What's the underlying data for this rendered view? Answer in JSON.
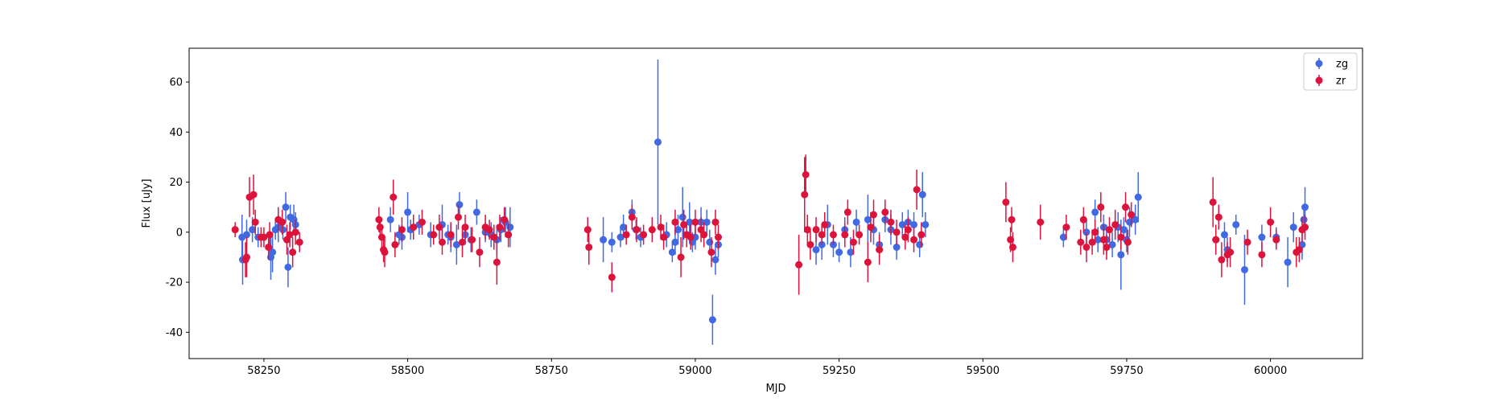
{
  "chart_data": {
    "type": "scatter",
    "title": "",
    "xlabel": "MJD",
    "ylabel": "Flux [uJy]",
    "xlim": [
      58120,
      60160
    ],
    "ylim": [
      -50.5,
      73.5
    ],
    "xticks": [
      58250,
      58500,
      58750,
      59000,
      59250,
      59500,
      59750,
      60000
    ],
    "yticks": [
      -40,
      -20,
      0,
      20,
      40,
      60
    ],
    "grid": false,
    "legend_position": "top-right",
    "error_bars": true,
    "series": [
      {
        "name": "zg",
        "color": "#4169e1",
        "points": [
          [
            58212,
            -2,
            9
          ],
          [
            58213,
            -11,
            10
          ],
          [
            58220,
            -1,
            6
          ],
          [
            58230,
            1,
            5
          ],
          [
            58240,
            -2,
            4
          ],
          [
            58262,
            -10,
            9
          ],
          [
            58265,
            -8,
            8
          ],
          [
            58270,
            1,
            4
          ],
          [
            58275,
            2,
            6
          ],
          [
            58283,
            1,
            4
          ],
          [
            58288,
            10,
            6
          ],
          [
            58292,
            -14,
            8
          ],
          [
            58296,
            6,
            5
          ],
          [
            58302,
            5,
            6
          ],
          [
            58305,
            3,
            5
          ],
          [
            58470,
            5,
            5
          ],
          [
            58485,
            -1,
            4
          ],
          [
            58490,
            -2,
            5
          ],
          [
            58500,
            8,
            8
          ],
          [
            58505,
            1,
            4
          ],
          [
            58520,
            3,
            4
          ],
          [
            58540,
            -1,
            5
          ],
          [
            58560,
            3,
            8
          ],
          [
            58570,
            -1,
            4
          ],
          [
            58575,
            -2,
            6
          ],
          [
            58585,
            -5,
            8
          ],
          [
            58590,
            11,
            5
          ],
          [
            58600,
            -1,
            4
          ],
          [
            58610,
            -3,
            5
          ],
          [
            58620,
            8,
            5
          ],
          [
            58635,
            0,
            4
          ],
          [
            58645,
            -1,
            5
          ],
          [
            58655,
            -3,
            6
          ],
          [
            58662,
            1,
            5
          ],
          [
            58670,
            4,
            6
          ],
          [
            58678,
            2,
            8
          ],
          [
            58840,
            -3,
            9
          ],
          [
            58855,
            -4,
            4
          ],
          [
            58870,
            -2,
            4
          ],
          [
            58875,
            2,
            5
          ],
          [
            58890,
            8,
            5
          ],
          [
            58897,
            1,
            4
          ],
          [
            58905,
            -2,
            4
          ],
          [
            58935,
            36,
            33
          ],
          [
            58950,
            -1,
            5
          ],
          [
            58960,
            -8,
            4
          ],
          [
            58965,
            -4,
            5
          ],
          [
            58970,
            1,
            6
          ],
          [
            58978,
            6,
            12
          ],
          [
            58990,
            4,
            8
          ],
          [
            58995,
            -4,
            4
          ],
          [
            59000,
            -2,
            5
          ],
          [
            59010,
            4,
            6
          ],
          [
            59020,
            4,
            5
          ],
          [
            59025,
            -4,
            5
          ],
          [
            59030,
            -35,
            10
          ],
          [
            59035,
            -11,
            6
          ],
          [
            59040,
            -5,
            5
          ],
          [
            59210,
            -7,
            6
          ],
          [
            59220,
            -5,
            6
          ],
          [
            59230,
            3,
            8
          ],
          [
            59240,
            -5,
            5
          ],
          [
            59250,
            -8,
            4
          ],
          [
            59260,
            1,
            5
          ],
          [
            59270,
            -8,
            6
          ],
          [
            59280,
            4,
            5
          ],
          [
            59300,
            5,
            10
          ],
          [
            59310,
            1,
            6
          ],
          [
            59320,
            -5,
            5
          ],
          [
            59330,
            5,
            5
          ],
          [
            59340,
            1,
            6
          ],
          [
            59350,
            -6,
            5
          ],
          [
            59360,
            3,
            5
          ],
          [
            59370,
            4,
            5
          ],
          [
            59380,
            3,
            5
          ],
          [
            59390,
            -5,
            5
          ],
          [
            59395,
            15,
            9
          ],
          [
            59400,
            3,
            5
          ],
          [
            59640,
            -2,
            4
          ],
          [
            59680,
            0,
            5
          ],
          [
            59695,
            8,
            5
          ],
          [
            59700,
            -3,
            5
          ],
          [
            59710,
            2,
            5
          ],
          [
            59715,
            -3,
            6
          ],
          [
            59725,
            -5,
            5
          ],
          [
            59735,
            2,
            6
          ],
          [
            59740,
            -9,
            14
          ],
          [
            59745,
            1,
            5
          ],
          [
            59750,
            -3,
            5
          ],
          [
            59755,
            4,
            6
          ],
          [
            59765,
            5,
            6
          ],
          [
            59770,
            14,
            10
          ],
          [
            59905,
            -3,
            6
          ],
          [
            59920,
            -1,
            5
          ],
          [
            59925,
            -7,
            5
          ],
          [
            59940,
            3,
            4
          ],
          [
            59955,
            -15,
            14
          ],
          [
            59985,
            -2,
            5
          ],
          [
            60010,
            -2,
            4
          ],
          [
            60030,
            -12,
            10
          ],
          [
            60040,
            2,
            6
          ],
          [
            60055,
            -5,
            6
          ],
          [
            60058,
            5,
            5
          ],
          [
            60060,
            10,
            8
          ]
        ]
      },
      {
        "name": "zr",
        "color": "#dc143c",
        "points": [
          [
            58200,
            1,
            3
          ],
          [
            58218,
            -11,
            7
          ],
          [
            58220,
            -10,
            8
          ],
          [
            58225,
            14,
            8
          ],
          [
            58232,
            15,
            8
          ],
          [
            58235,
            4,
            5
          ],
          [
            58245,
            -2,
            4
          ],
          [
            58250,
            -2,
            4
          ],
          [
            58260,
            -1,
            5
          ],
          [
            58258,
            -6,
            5
          ],
          [
            58275,
            5,
            5
          ],
          [
            58282,
            4,
            5
          ],
          [
            58290,
            -3,
            6
          ],
          [
            58295,
            -1,
            5
          ],
          [
            58300,
            -8,
            6
          ],
          [
            58305,
            0,
            5
          ],
          [
            58312,
            -4,
            4
          ],
          [
            58450,
            5,
            5
          ],
          [
            58452,
            2,
            4
          ],
          [
            58455,
            -2,
            4
          ],
          [
            58458,
            -7,
            5
          ],
          [
            58460,
            -8,
            6
          ],
          [
            58475,
            14,
            7
          ],
          [
            58478,
            -5,
            5
          ],
          [
            58490,
            1,
            5
          ],
          [
            58510,
            2,
            5
          ],
          [
            58525,
            4,
            5
          ],
          [
            58545,
            -1,
            4
          ],
          [
            58555,
            2,
            5
          ],
          [
            58560,
            -4,
            5
          ],
          [
            58575,
            -1,
            5
          ],
          [
            58588,
            6,
            5
          ],
          [
            58595,
            -4,
            6
          ],
          [
            58600,
            2,
            5
          ],
          [
            58612,
            -3,
            5
          ],
          [
            58625,
            -8,
            6
          ],
          [
            58635,
            2,
            5
          ],
          [
            58642,
            1,
            4
          ],
          [
            58650,
            -2,
            5
          ],
          [
            58655,
            -12,
            9
          ],
          [
            58660,
            2,
            5
          ],
          [
            58668,
            5,
            5
          ],
          [
            58675,
            -1,
            5
          ],
          [
            58813,
            1,
            5
          ],
          [
            58815,
            -6,
            7
          ],
          [
            58855,
            -18,
            6
          ],
          [
            58880,
            -1,
            4
          ],
          [
            58890,
            6,
            5
          ],
          [
            58898,
            1,
            5
          ],
          [
            58910,
            -1,
            4
          ],
          [
            58925,
            1,
            5
          ],
          [
            58940,
            2,
            5
          ],
          [
            58945,
            -2,
            5
          ],
          [
            58965,
            4,
            5
          ],
          [
            58975,
            -10,
            8
          ],
          [
            58980,
            3,
            6
          ],
          [
            58985,
            -1,
            5
          ],
          [
            58992,
            -2,
            5
          ],
          [
            59000,
            4,
            5
          ],
          [
            59010,
            1,
            5
          ],
          [
            59015,
            -1,
            5
          ],
          [
            59028,
            -8,
            6
          ],
          [
            59035,
            4,
            5
          ],
          [
            59040,
            -2,
            5
          ],
          [
            59180,
            -13,
            12
          ],
          [
            59190,
            15,
            15
          ],
          [
            59192,
            23,
            8
          ],
          [
            59195,
            1,
            6
          ],
          [
            59200,
            -5,
            6
          ],
          [
            59210,
            1,
            5
          ],
          [
            59220,
            -1,
            4
          ],
          [
            59225,
            3,
            5
          ],
          [
            59240,
            -1,
            4
          ],
          [
            59260,
            -1,
            5
          ],
          [
            59265,
            8,
            5
          ],
          [
            59275,
            -4,
            5
          ],
          [
            59285,
            -1,
            4
          ],
          [
            59300,
            -12,
            8
          ],
          [
            59305,
            2,
            6
          ],
          [
            59310,
            7,
            6
          ],
          [
            59320,
            -7,
            6
          ],
          [
            59330,
            8,
            5
          ],
          [
            59340,
            4,
            5
          ],
          [
            59350,
            0,
            5
          ],
          [
            59365,
            -2,
            5
          ],
          [
            59370,
            1,
            5
          ],
          [
            59380,
            -3,
            5
          ],
          [
            59385,
            17,
            8
          ],
          [
            59393,
            -1,
            5
          ],
          [
            59540,
            12,
            8
          ],
          [
            59548,
            -3,
            5
          ],
          [
            59550,
            5,
            5
          ],
          [
            59552,
            -6,
            6
          ],
          [
            59600,
            4,
            7
          ],
          [
            59645,
            2,
            5
          ],
          [
            59670,
            -4,
            5
          ],
          [
            59675,
            5,
            5
          ],
          [
            59680,
            -6,
            6
          ],
          [
            59690,
            -4,
            5
          ],
          [
            59695,
            0,
            5
          ],
          [
            59705,
            10,
            6
          ],
          [
            59710,
            -3,
            6
          ],
          [
            59715,
            -6,
            5
          ],
          [
            59720,
            1,
            5
          ],
          [
            59730,
            3,
            6
          ],
          [
            59740,
            -2,
            5
          ],
          [
            59748,
            10,
            6
          ],
          [
            59752,
            -4,
            5
          ],
          [
            59758,
            7,
            5
          ],
          [
            59900,
            12,
            10
          ],
          [
            59905,
            -3,
            6
          ],
          [
            59910,
            6,
            5
          ],
          [
            59915,
            -11,
            7
          ],
          [
            59925,
            -9,
            5
          ],
          [
            59930,
            -8,
            6
          ],
          [
            59960,
            -4,
            5
          ],
          [
            59985,
            -9,
            5
          ],
          [
            60000,
            4,
            6
          ],
          [
            60010,
            -3,
            4
          ],
          [
            60045,
            -8,
            6
          ],
          [
            60050,
            -7,
            5
          ],
          [
            60055,
            1,
            5
          ],
          [
            60060,
            2,
            5
          ]
        ]
      }
    ]
  }
}
